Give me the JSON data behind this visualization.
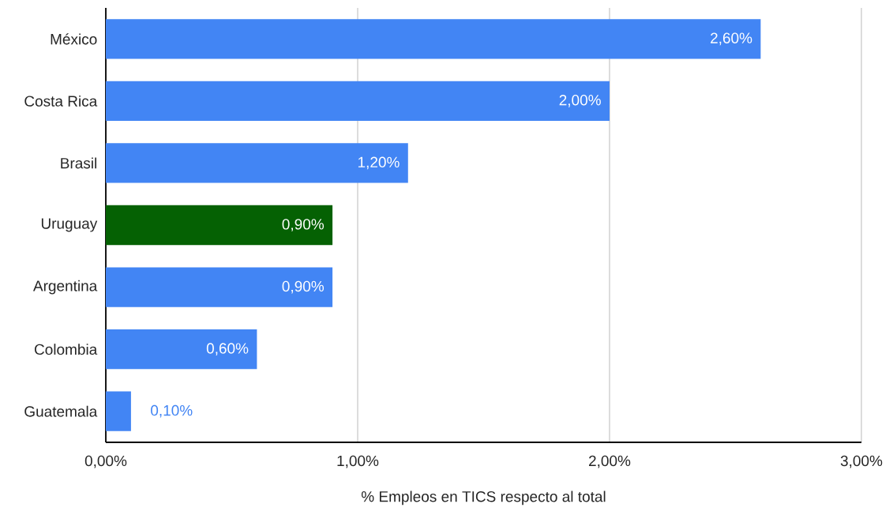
{
  "chart_data": {
    "type": "bar",
    "orientation": "horizontal",
    "xlabel": "% Empleos en TICS respecto al total",
    "categories": [
      "México",
      "Costa Rica",
      "Brasil",
      "Uruguay",
      "Argentina",
      "Colombia",
      "Guatemala"
    ],
    "values": [
      2.6,
      2.0,
      1.2,
      0.9,
      0.9,
      0.6,
      0.1
    ],
    "colors": [
      "#4285f4",
      "#4285f4",
      "#4285f4",
      "#056103",
      "#4285f4",
      "#4285f4",
      "#4285f4"
    ],
    "value_labels": [
      "2,60%",
      "2,00%",
      "1,20%",
      "0,90%",
      "0,90%",
      "0,60%",
      "0,10%"
    ],
    "xlim": [
      0,
      3
    ],
    "xticks": [
      {
        "value": 0,
        "label": "0,00%"
      },
      {
        "value": 1,
        "label": "1,00%"
      },
      {
        "value": 2,
        "label": "2,00%"
      },
      {
        "value": 3,
        "label": "3,00%"
      }
    ],
    "grid": "x"
  }
}
